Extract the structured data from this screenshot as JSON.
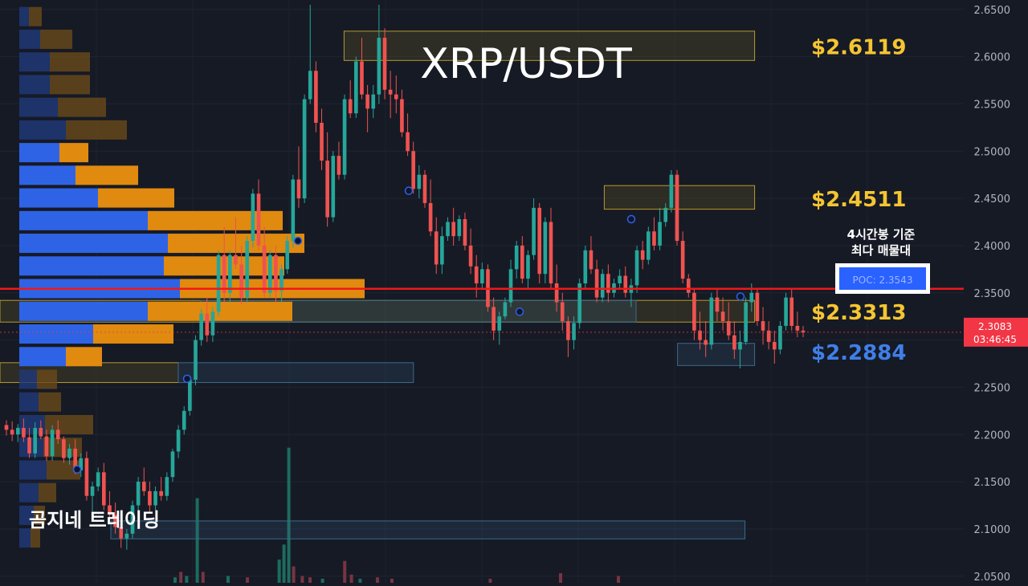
{
  "chart_data": {
    "type": "candlestick",
    "symbol_title": "XRP/USDT",
    "watermark": "곰지네 트레이딩",
    "y_axis": {
      "ticks": [
        "2.6500",
        "2.6000",
        "2.5500",
        "2.5000",
        "2.4500",
        "2.4000",
        "2.3500",
        "2.3000",
        "2.2500",
        "2.2000",
        "2.1500",
        "2.1000",
        "2.0500"
      ],
      "range": [
        2.043,
        2.66
      ]
    },
    "current_price": {
      "price": "2.3083",
      "countdown": "03:46:45",
      "value": 2.3083
    },
    "poc": {
      "label": "POC: 2.3543",
      "value": 2.3543,
      "note_line1": "4시간봉 기준",
      "note_line2": "최다 매물대"
    },
    "levels": [
      {
        "label": "$2.6119",
        "value": 2.6119,
        "color": "#f5c531"
      },
      {
        "label": "$2.4511",
        "value": 2.4511,
        "color": "#f5c531"
      },
      {
        "label": "$2.3313",
        "value": 2.3313,
        "color": "#f5c531"
      },
      {
        "label": "$2.2884",
        "value": 2.2884,
        "color": "#3f7fe8"
      }
    ],
    "zones": [
      {
        "kind": "supply",
        "top": 2.627,
        "bottom": 2.596,
        "x0": 0.357,
        "x1": 0.783
      },
      {
        "kind": "supply",
        "top": 2.4635,
        "bottom": 2.4385,
        "x0": 0.627,
        "x1": 0.783
      },
      {
        "kind": "supply",
        "top": 2.342,
        "bottom": 2.319,
        "x0": 0.0,
        "x1": 0.783
      },
      {
        "kind": "demand",
        "top": 2.342,
        "bottom": 2.319,
        "x0": 0.208,
        "x1": 0.66
      },
      {
        "kind": "demand",
        "top": 2.2965,
        "bottom": 2.273,
        "x0": 0.703,
        "x1": 0.783
      },
      {
        "kind": "supply",
        "top": 2.276,
        "bottom": 2.255,
        "x0": 0.0,
        "x1": 0.185
      },
      {
        "kind": "demand",
        "top": 2.276,
        "bottom": 2.255,
        "x0": 0.185,
        "x1": 0.429
      },
      {
        "kind": "demand",
        "top": 2.1085,
        "bottom": 2.0895,
        "x0": 0.115,
        "x1": 0.773
      }
    ],
    "volume_profile": [
      {
        "price": 2.642,
        "buy": 12,
        "sell": 16
      },
      {
        "price": 2.618,
        "buy": 26,
        "sell": 40
      },
      {
        "price": 2.594,
        "buy": 38,
        "sell": 50
      },
      {
        "price": 2.57,
        "buy": 38,
        "sell": 50
      },
      {
        "price": 2.546,
        "buy": 48,
        "sell": 60
      },
      {
        "price": 2.522,
        "buy": 58,
        "sell": 76
      },
      {
        "price": 2.498,
        "buy": 50,
        "sell": 36
      },
      {
        "price": 2.474,
        "buy": 70,
        "sell": 78
      },
      {
        "price": 2.45,
        "buy": 98,
        "sell": 95
      },
      {
        "price": 2.426,
        "buy": 160,
        "sell": 168
      },
      {
        "price": 2.402,
        "buy": 185,
        "sell": 170
      },
      {
        "price": 2.378,
        "buy": 180,
        "sell": 150
      },
      {
        "price": 2.354,
        "buy": 200,
        "sell": 230
      },
      {
        "price": 2.33,
        "buy": 160,
        "sell": 180
      },
      {
        "price": 2.306,
        "buy": 92,
        "sell": 100
      },
      {
        "price": 2.282,
        "buy": 58,
        "sell": 45
      },
      {
        "price": 2.258,
        "buy": 22,
        "sell": 25
      },
      {
        "price": 2.234,
        "buy": 24,
        "sell": 28
      },
      {
        "price": 2.21,
        "buy": 32,
        "sell": 60
      },
      {
        "price": 2.186,
        "buy": 30,
        "sell": 48
      },
      {
        "price": 2.162,
        "buy": 34,
        "sell": 42
      },
      {
        "price": 2.138,
        "buy": 24,
        "sell": 22
      },
      {
        "price": 2.114,
        "buy": 18,
        "sell": 14
      },
      {
        "price": 2.09,
        "buy": 14,
        "sell": 12
      }
    ],
    "candles": [
      [
        2.21,
        2.215,
        2.199,
        2.205
      ],
      [
        2.205,
        2.214,
        2.193,
        2.2
      ],
      [
        2.2,
        2.211,
        2.192,
        2.207
      ],
      [
        2.207,
        2.217,
        2.192,
        2.197
      ],
      [
        2.197,
        2.207,
        2.175,
        2.18
      ],
      [
        2.18,
        2.213,
        2.175,
        2.207
      ],
      [
        2.207,
        2.215,
        2.195,
        2.198
      ],
      [
        2.198,
        2.205,
        2.172,
        2.177
      ],
      [
        2.177,
        2.21,
        2.172,
        2.205
      ],
      [
        2.205,
        2.215,
        2.19,
        2.195
      ],
      [
        2.195,
        2.198,
        2.17,
        2.175
      ],
      [
        2.175,
        2.19,
        2.168,
        2.185
      ],
      [
        2.185,
        2.195,
        2.158,
        2.162
      ],
      [
        2.162,
        2.18,
        2.155,
        2.175
      ],
      [
        2.175,
        2.182,
        2.13,
        2.135
      ],
      [
        2.135,
        2.15,
        2.118,
        2.145
      ],
      [
        2.145,
        2.165,
        2.14,
        2.16
      ],
      [
        2.16,
        2.17,
        2.12,
        2.125
      ],
      [
        2.125,
        2.14,
        2.11,
        2.115
      ],
      [
        2.115,
        2.128,
        2.095,
        2.102
      ],
      [
        2.102,
        2.115,
        2.08,
        2.09
      ],
      [
        2.09,
        2.1,
        2.078,
        2.095
      ],
      [
        2.095,
        2.13,
        2.09,
        2.125
      ],
      [
        2.125,
        2.155,
        2.115,
        2.15
      ],
      [
        2.15,
        2.165,
        2.135,
        2.14
      ],
      [
        2.14,
        2.15,
        2.118,
        2.125
      ],
      [
        2.125,
        2.145,
        2.12,
        2.14
      ],
      [
        2.14,
        2.155,
        2.13,
        2.135
      ],
      [
        2.135,
        2.16,
        2.13,
        2.155
      ],
      [
        2.155,
        2.185,
        2.15,
        2.182
      ],
      [
        2.182,
        2.21,
        2.175,
        2.205
      ],
      [
        2.205,
        2.23,
        2.2,
        2.225
      ],
      [
        2.225,
        2.262,
        2.22,
        2.258
      ],
      [
        2.258,
        2.305,
        2.252,
        2.3
      ],
      [
        2.3,
        2.333,
        2.294,
        2.328
      ],
      [
        2.328,
        2.345,
        2.298,
        2.305
      ],
      [
        2.305,
        2.335,
        2.298,
        2.33
      ],
      [
        2.33,
        2.395,
        2.325,
        2.39
      ],
      [
        2.39,
        2.42,
        2.34,
        2.35
      ],
      [
        2.35,
        2.395,
        2.34,
        2.39
      ],
      [
        2.39,
        2.43,
        2.375,
        2.38
      ],
      [
        2.38,
        2.4,
        2.338,
        2.345
      ],
      [
        2.345,
        2.41,
        2.34,
        2.405
      ],
      [
        2.405,
        2.46,
        2.398,
        2.455
      ],
      [
        2.455,
        2.47,
        2.395,
        2.4
      ],
      [
        2.4,
        2.42,
        2.345,
        2.35
      ],
      [
        2.35,
        2.395,
        2.345,
        2.39
      ],
      [
        2.39,
        2.4,
        2.34,
        2.352
      ],
      [
        2.352,
        2.38,
        2.34,
        2.375
      ],
      [
        2.375,
        2.41,
        2.37,
        2.405
      ],
      [
        2.405,
        2.475,
        2.398,
        2.47
      ],
      [
        2.47,
        2.505,
        2.44,
        2.45
      ],
      [
        2.45,
        2.56,
        2.445,
        2.555
      ],
      [
        2.555,
        2.655,
        2.55,
        2.585
      ],
      [
        2.585,
        2.595,
        2.52,
        2.53
      ],
      [
        2.53,
        2.545,
        2.48,
        2.49
      ],
      [
        2.49,
        2.52,
        2.42,
        2.43
      ],
      [
        2.43,
        2.5,
        2.425,
        2.495
      ],
      [
        2.495,
        2.51,
        2.47,
        2.475
      ],
      [
        2.475,
        2.56,
        2.47,
        2.555
      ],
      [
        2.555,
        2.575,
        2.535,
        2.54
      ],
      [
        2.54,
        2.6,
        2.535,
        2.595
      ],
      [
        2.595,
        2.62,
        2.555,
        2.56
      ],
      [
        2.56,
        2.57,
        2.52,
        2.545
      ],
      [
        2.545,
        2.57,
        2.535,
        2.56
      ],
      [
        2.56,
        2.655,
        2.55,
        2.62
      ],
      [
        2.62,
        2.63,
        2.555,
        2.565
      ],
      [
        2.565,
        2.585,
        2.535,
        2.56
      ],
      [
        2.56,
        2.58,
        2.54,
        2.555
      ],
      [
        2.555,
        2.565,
        2.515,
        2.52
      ],
      [
        2.52,
        2.54,
        2.495,
        2.5
      ],
      [
        2.5,
        2.51,
        2.455,
        2.46
      ],
      [
        2.46,
        2.485,
        2.45,
        2.475
      ],
      [
        2.475,
        2.48,
        2.44,
        2.445
      ],
      [
        2.445,
        2.47,
        2.41,
        2.415
      ],
      [
        2.415,
        2.43,
        2.37,
        2.38
      ],
      [
        2.38,
        2.42,
        2.37,
        2.41
      ],
      [
        2.41,
        2.43,
        2.405,
        2.425
      ],
      [
        2.425,
        2.44,
        2.4,
        2.41
      ],
      [
        2.41,
        2.432,
        2.405,
        2.428
      ],
      [
        2.428,
        2.435,
        2.395,
        2.4
      ],
      [
        2.4,
        2.418,
        2.37,
        2.378
      ],
      [
        2.378,
        2.39,
        2.345,
        2.36
      ],
      [
        2.36,
        2.382,
        2.355,
        2.375
      ],
      [
        2.375,
        2.38,
        2.33,
        2.335
      ],
      [
        2.335,
        2.345,
        2.3,
        2.31
      ],
      [
        2.31,
        2.33,
        2.295,
        2.325
      ],
      [
        2.325,
        2.345,
        2.322,
        2.34
      ],
      [
        2.34,
        2.385,
        2.335,
        2.375
      ],
      [
        2.375,
        2.405,
        2.365,
        2.4
      ],
      [
        2.4,
        2.41,
        2.36,
        2.365
      ],
      [
        2.365,
        2.395,
        2.355,
        2.39
      ],
      [
        2.39,
        2.45,
        2.385,
        2.44
      ],
      [
        2.44,
        2.445,
        2.36,
        2.37
      ],
      [
        2.37,
        2.43,
        2.36,
        2.425
      ],
      [
        2.425,
        2.44,
        2.355,
        2.36
      ],
      [
        2.36,
        2.38,
        2.33,
        2.34
      ],
      [
        2.34,
        2.35,
        2.31,
        2.32
      ],
      [
        2.32,
        2.325,
        2.282,
        2.3
      ],
      [
        2.3,
        2.325,
        2.29,
        2.318
      ],
      [
        2.318,
        2.365,
        2.312,
        2.36
      ],
      [
        2.36,
        2.4,
        2.355,
        2.395
      ],
      [
        2.395,
        2.41,
        2.37,
        2.375
      ],
      [
        2.375,
        2.385,
        2.34,
        2.345
      ],
      [
        2.345,
        2.375,
        2.34,
        2.37
      ],
      [
        2.37,
        2.38,
        2.34,
        2.35
      ],
      [
        2.35,
        2.365,
        2.345,
        2.36
      ],
      [
        2.36,
        2.375,
        2.355,
        2.368
      ],
      [
        2.368,
        2.378,
        2.345,
        2.35
      ],
      [
        2.35,
        2.365,
        2.335,
        2.358
      ],
      [
        2.358,
        2.4,
        2.35,
        2.395
      ],
      [
        2.395,
        2.405,
        2.375,
        2.385
      ],
      [
        2.385,
        2.42,
        2.38,
        2.415
      ],
      [
        2.415,
        2.43,
        2.395,
        2.4
      ],
      [
        2.4,
        2.44,
        2.395,
        2.425
      ],
      [
        2.425,
        2.445,
        2.42,
        2.44
      ],
      [
        2.44,
        2.48,
        2.435,
        2.475
      ],
      [
        2.475,
        2.48,
        2.4,
        2.405
      ],
      [
        2.405,
        2.415,
        2.36,
        2.365
      ],
      [
        2.365,
        2.37,
        2.345,
        2.35
      ],
      [
        2.35,
        2.355,
        2.3,
        2.31
      ],
      [
        2.31,
        2.33,
        2.29,
        2.3
      ],
      [
        2.3,
        2.32,
        2.282,
        2.295
      ],
      [
        2.295,
        2.35,
        2.29,
        2.345
      ],
      [
        2.345,
        2.355,
        2.32,
        2.33
      ],
      [
        2.33,
        2.345,
        2.31,
        2.32
      ],
      [
        2.32,
        2.34,
        2.3,
        2.305
      ],
      [
        2.305,
        2.32,
        2.28,
        2.29
      ],
      [
        2.29,
        2.31,
        2.27,
        2.298
      ],
      [
        2.298,
        2.345,
        2.295,
        2.34
      ],
      [
        2.34,
        2.36,
        2.33,
        2.35
      ],
      [
        2.35,
        2.355,
        2.315,
        2.32
      ],
      [
        2.32,
        2.335,
        2.295,
        2.31
      ],
      [
        2.31,
        2.32,
        2.29,
        2.298
      ],
      [
        2.298,
        2.31,
        2.275,
        2.29
      ],
      [
        2.29,
        2.32,
        2.285,
        2.315
      ],
      [
        2.315,
        2.35,
        2.31,
        2.345
      ],
      [
        2.345,
        2.355,
        2.31,
        2.315
      ],
      [
        2.315,
        2.33,
        2.303,
        2.31
      ],
      [
        2.31,
        2.315,
        2.303,
        2.308
      ]
    ],
    "volume": [
      {
        "x": 0.18,
        "v": 0.04,
        "up": true
      },
      {
        "x": 0.186,
        "v": 0.08,
        "up": false
      },
      {
        "x": 0.192,
        "v": 0.05,
        "up": true
      },
      {
        "x": 0.203,
        "v": 0.62,
        "up": true
      },
      {
        "x": 0.209,
        "v": 0.08,
        "up": false
      },
      {
        "x": 0.235,
        "v": 0.05,
        "up": true
      },
      {
        "x": 0.255,
        "v": 0.04,
        "up": false
      },
      {
        "x": 0.288,
        "v": 0.17,
        "up": true
      },
      {
        "x": 0.293,
        "v": 0.28,
        "up": true
      },
      {
        "x": 0.298,
        "v": 0.99,
        "up": true
      },
      {
        "x": 0.303,
        "v": 0.12,
        "up": false
      },
      {
        "x": 0.312,
        "v": 0.05,
        "up": false
      },
      {
        "x": 0.32,
        "v": 0.04,
        "up": false
      },
      {
        "x": 0.333,
        "v": 0.03,
        "up": true
      },
      {
        "x": 0.356,
        "v": 0.16,
        "up": false
      },
      {
        "x": 0.363,
        "v": 0.06,
        "up": false
      },
      {
        "x": 0.372,
        "v": 0.03,
        "up": true
      },
      {
        "x": 0.39,
        "v": 0.04,
        "up": false
      },
      {
        "x": 0.405,
        "v": 0.03,
        "up": false
      },
      {
        "x": 0.507,
        "v": 0.03,
        "up": false
      },
      {
        "x": 0.58,
        "v": 0.07,
        "up": false
      },
      {
        "x": 0.64,
        "v": 0.05,
        "up": false
      }
    ]
  }
}
